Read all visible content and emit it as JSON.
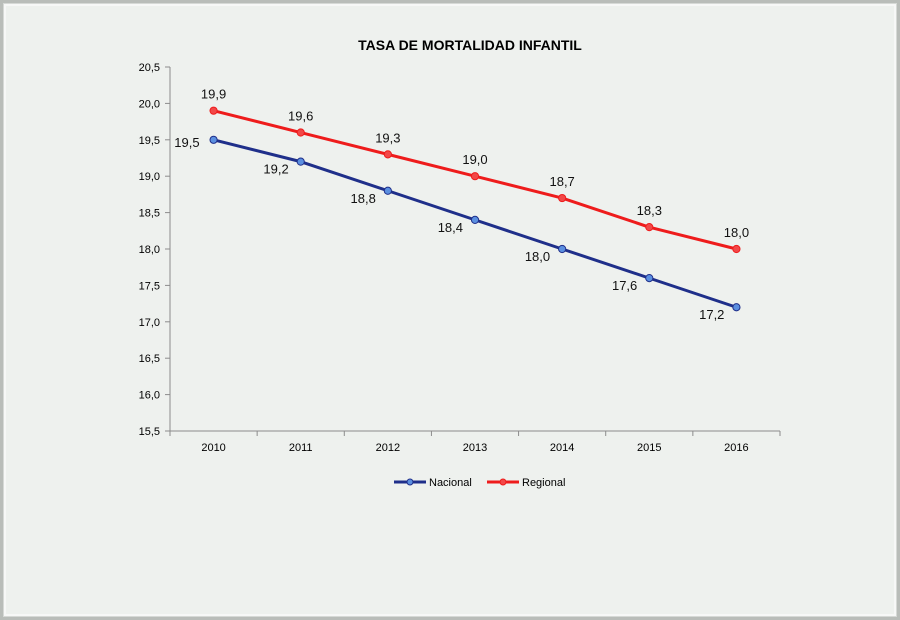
{
  "chart_data": {
    "type": "line",
    "title": "TASA DE MORTALIDAD INFANTIL",
    "xlabel": "",
    "ylabel": "",
    "categories": [
      "2010",
      "2011",
      "2012",
      "2013",
      "2014",
      "2015",
      "2016"
    ],
    "ylim": [
      15.5,
      20.5
    ],
    "yticks": [
      "15,5",
      "16,0",
      "16,5",
      "17,0",
      "17,5",
      "18,0",
      "18,5",
      "19,0",
      "19,5",
      "20,0",
      "20,5"
    ],
    "grid": false,
    "legend_position": "bottom",
    "series": [
      {
        "name": "Nacional",
        "color": "#1f2f8a",
        "marker_color": "#5b8fe0",
        "values": [
          19.5,
          19.2,
          18.8,
          18.4,
          18.0,
          17.6,
          17.2
        ],
        "labels": [
          "19,5",
          "19,2",
          "18,8",
          "18,4",
          "18,0",
          "17,6",
          "17,2"
        ]
      },
      {
        "name": "Regional",
        "color": "#ee1c1c",
        "marker_color": "#f24848",
        "values": [
          19.9,
          19.6,
          19.3,
          19.0,
          18.7,
          18.3,
          18.0
        ],
        "labels": [
          "19,9",
          "19,6",
          "19,3",
          "19,0",
          "18,7",
          "18,3",
          "18,0"
        ]
      }
    ]
  }
}
